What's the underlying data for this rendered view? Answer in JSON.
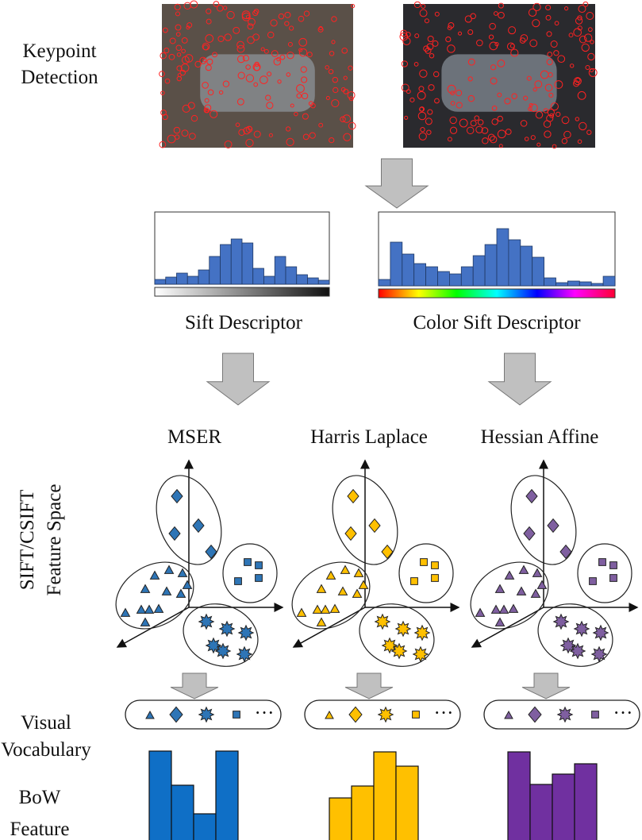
{
  "left_labels": {
    "keypoint_detection": [
      "Keypoint",
      "Detection"
    ],
    "feature_space": [
      "SIFT/CSIFT",
      "Feature Space"
    ],
    "visual_vocabulary": [
      "Visual",
      "Vocabulary"
    ],
    "bow_feature": [
      "BoW",
      "Feature"
    ]
  },
  "descriptors": [
    "Sift Descriptor",
    "Color Sift Descriptor"
  ],
  "detectors": [
    "MSER",
    "Harris Laplace",
    "Hessian Affine"
  ],
  "vocabulary_ellipsis": [
    "···",
    "···",
    "···"
  ]
}
